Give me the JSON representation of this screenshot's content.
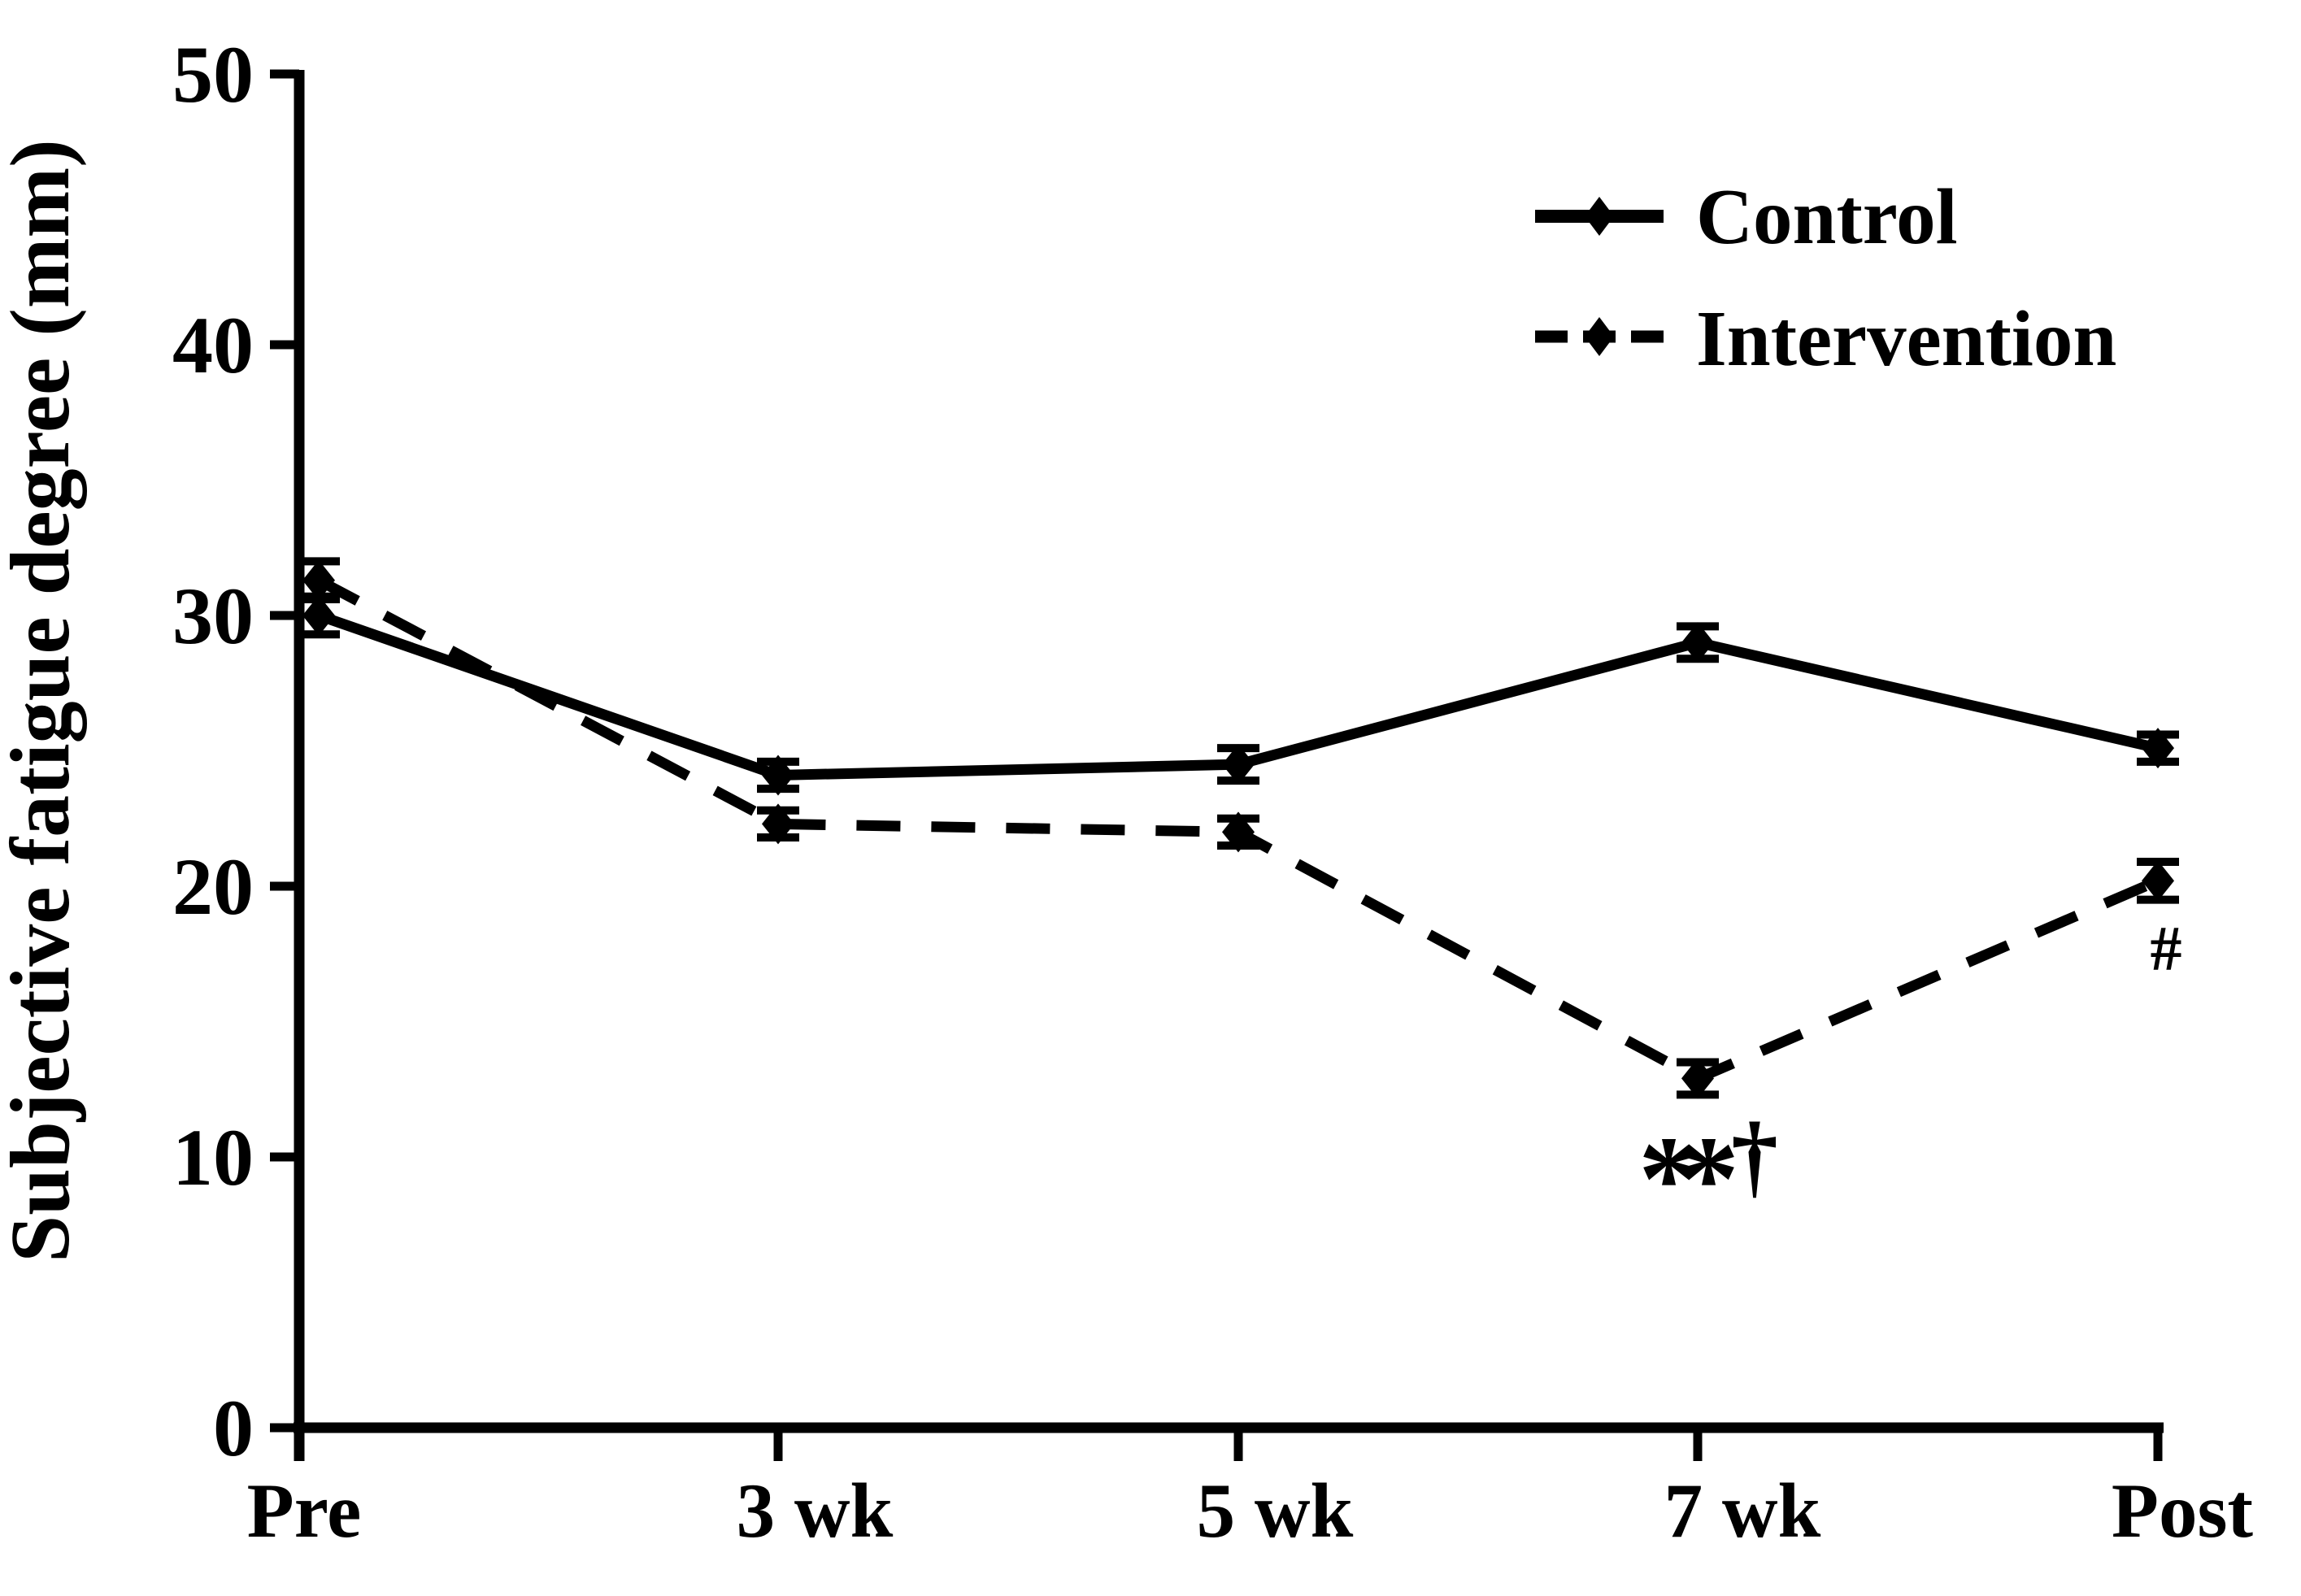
{
  "figure": {
    "background_color": "#ffffff",
    "ink_color": "#000000"
  },
  "chart_data": {
    "type": "line",
    "title": "",
    "xlabel": "",
    "ylabel": "Subjective fatigue degree (mm)",
    "ylim": [
      0,
      50
    ],
    "yticks": [
      0,
      10,
      20,
      30,
      40,
      50
    ],
    "categories": [
      "Pre",
      "3 wk",
      "5 wk",
      "7 wk",
      "Post"
    ],
    "grid": false,
    "error_bars": true,
    "series": [
      {
        "name": "Control",
        "line_style": "solid",
        "marker": "diamond",
        "color": "#000000",
        "values": [
          30.0,
          24.1,
          24.5,
          29.0,
          25.1
        ],
        "errors": [
          0.7,
          0.5,
          0.6,
          0.6,
          0.5
        ]
      },
      {
        "name": "Intervention",
        "line_style": "dashed",
        "marker": "diamond",
        "color": "#000000",
        "values": [
          31.3,
          22.3,
          22.0,
          12.9,
          20.2
        ],
        "errors": [
          0.7,
          0.5,
          0.5,
          0.6,
          0.7
        ]
      }
    ],
    "legend": {
      "position": "upper-right",
      "entries": [
        "Control",
        "Intervention"
      ]
    },
    "annotations": [
      {
        "text": "**",
        "anchor": "below 7 wk Intervention point"
      },
      {
        "text": "†",
        "anchor": "below 7 wk Intervention point"
      },
      {
        "text": "#",
        "anchor": "below Post Intervention point"
      }
    ]
  }
}
